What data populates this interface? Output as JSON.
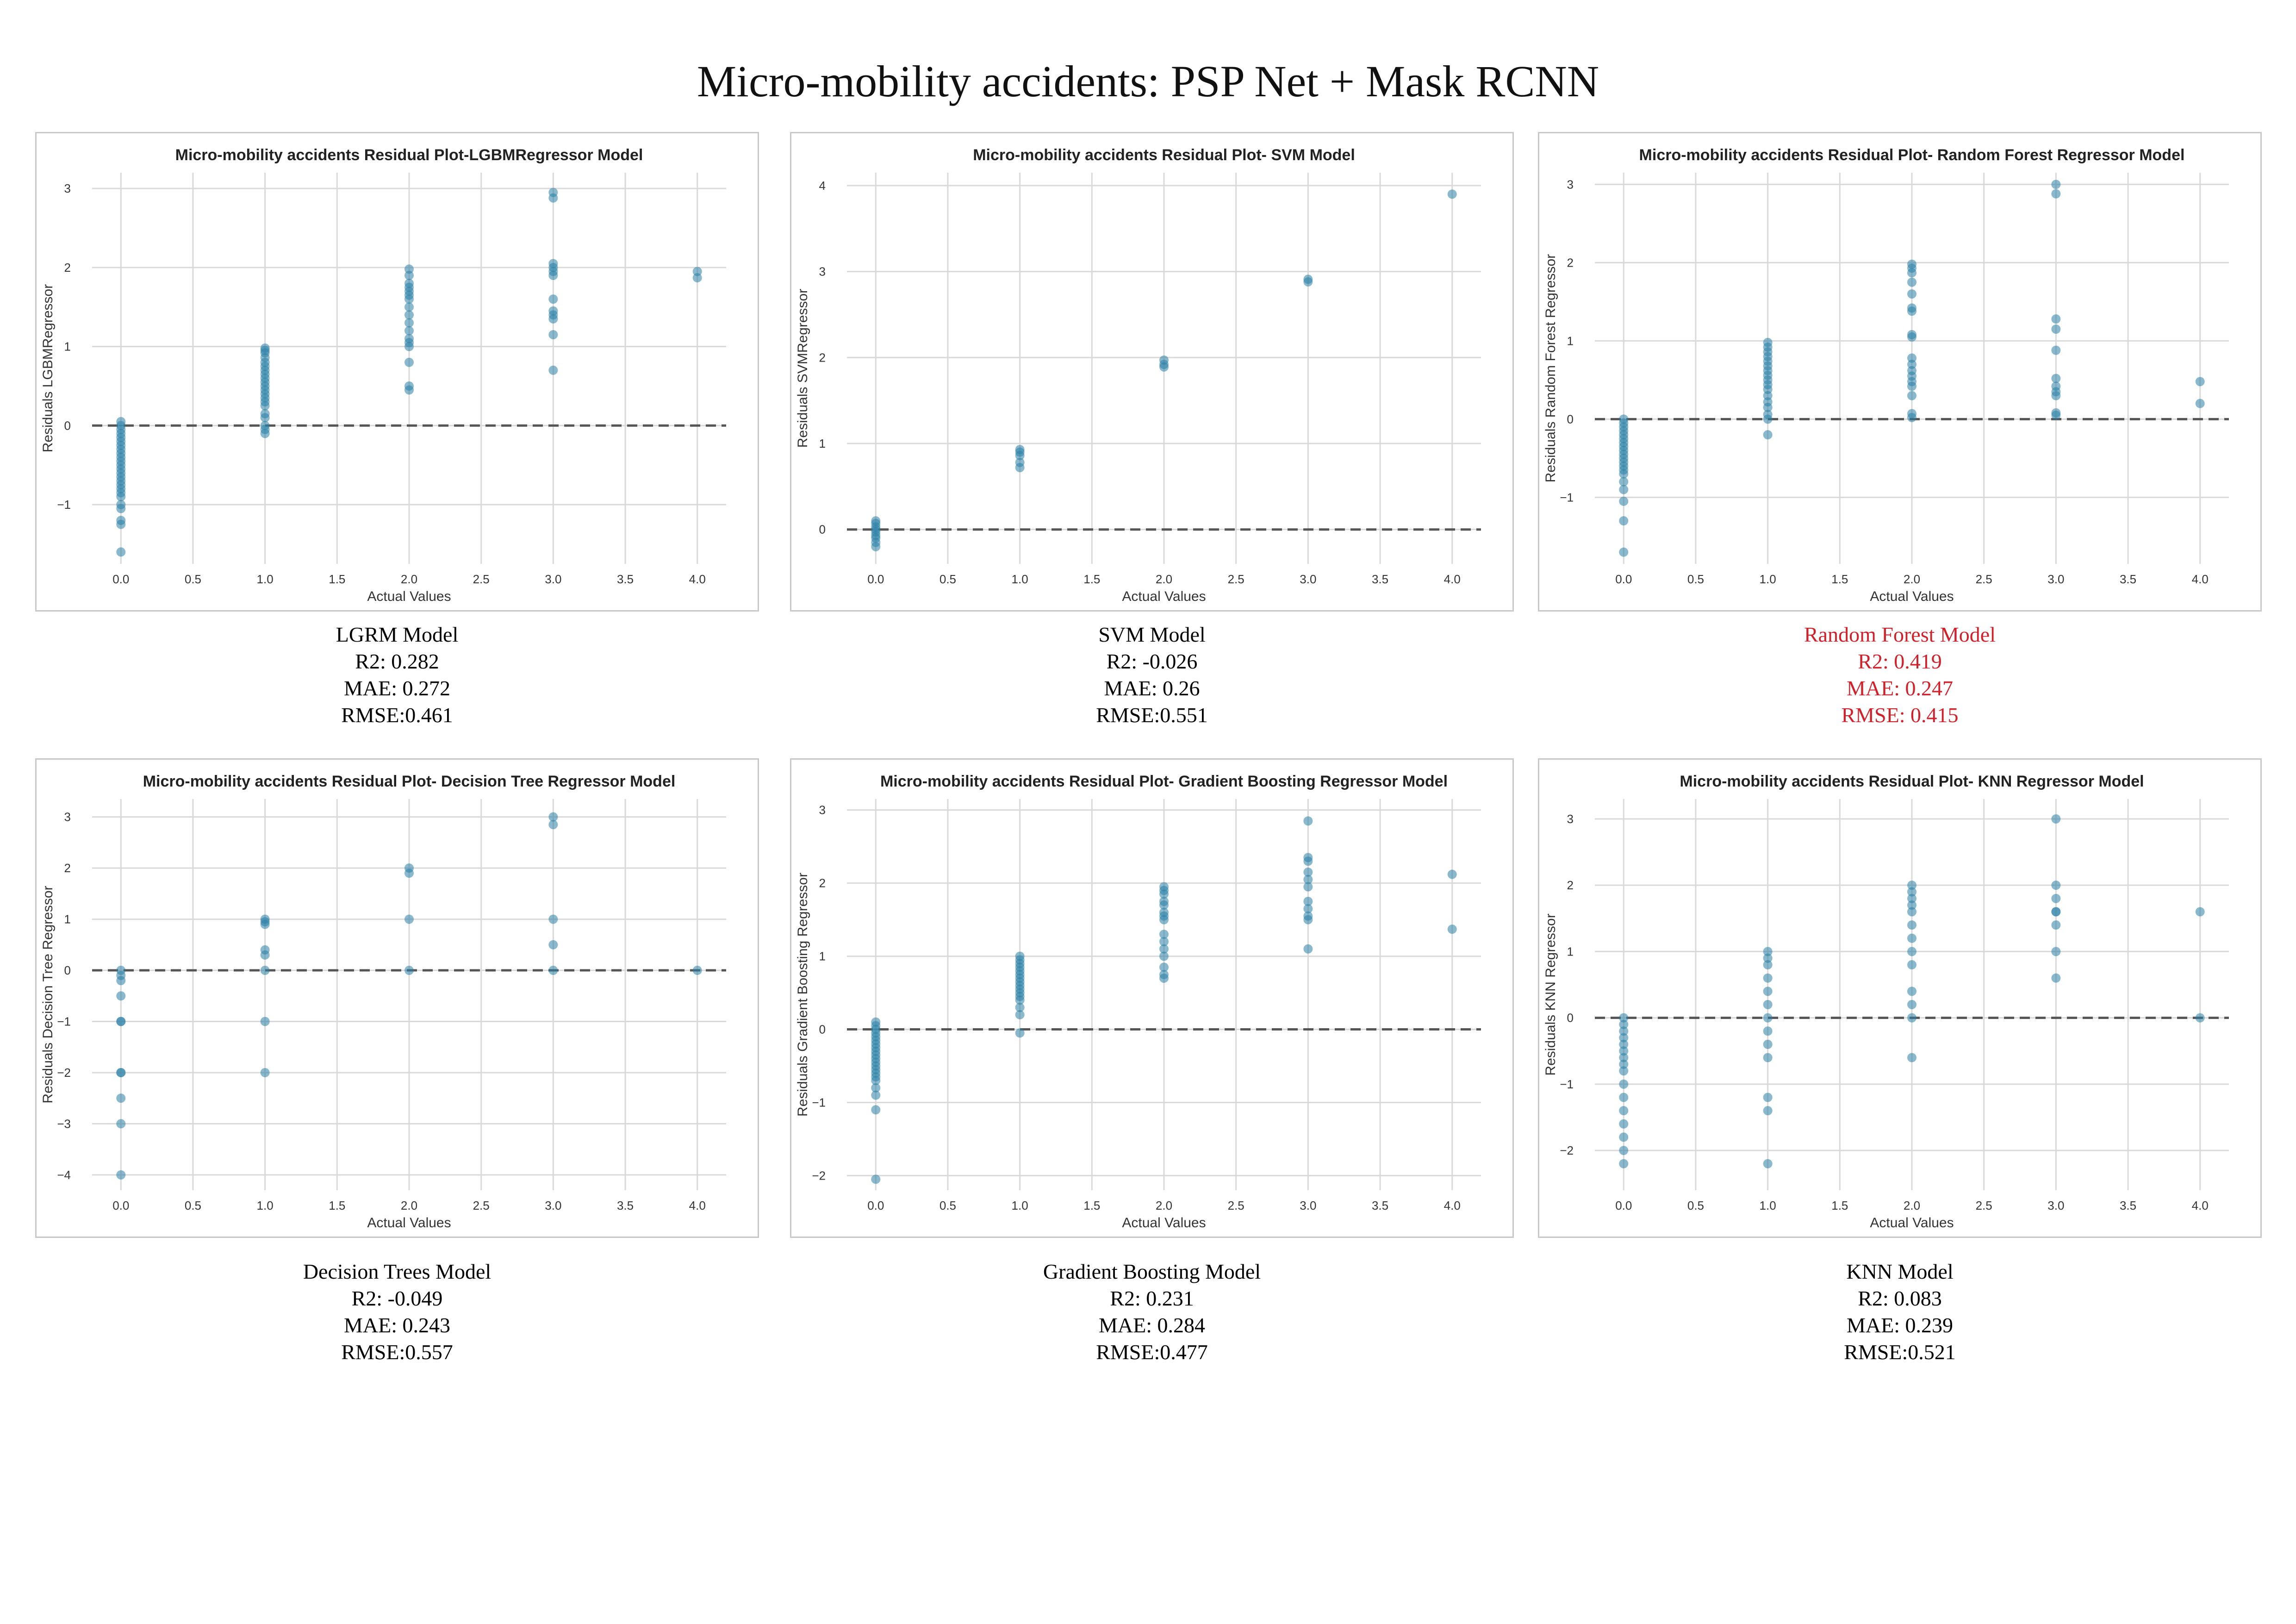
{
  "title": "Micro-mobility accidents: PSP Net + Mask RCNN",
  "colors": {
    "point": "#2a7fa6",
    "grid": "#d9d9d9",
    "highlight": "#d0202a",
    "zero_line": "#555555"
  },
  "chart_data": [
    {
      "type": "scatter",
      "title": "Micro-mobility accidents Residual Plot-LGBMRegressor Model",
      "xlabel": "Actual Values",
      "ylabel": "Residuals LGBMRegressor",
      "xlim": [
        -0.2,
        4.2
      ],
      "ylim": [
        -1.75,
        3.2
      ],
      "xticks": [
        0.0,
        0.5,
        1.0,
        1.5,
        2.0,
        2.5,
        3.0,
        3.5,
        4.0
      ],
      "yticks": [
        -1,
        0,
        1,
        2,
        3
      ],
      "zero_line": true,
      "grid": true,
      "x": [
        0,
        0,
        0,
        0,
        0,
        0,
        0,
        0,
        0,
        0,
        0,
        0,
        0,
        0,
        0,
        0,
        0,
        0,
        0,
        0,
        0,
        0,
        0,
        0,
        0,
        1,
        1,
        1,
        1,
        1,
        1,
        1,
        1,
        1,
        1,
        1,
        1,
        1,
        1,
        1,
        1,
        1,
        1,
        1,
        1,
        1,
        2,
        2,
        2,
        2,
        2,
        2,
        2,
        2,
        2,
        2,
        2,
        2,
        2,
        2,
        2,
        2,
        2,
        3,
        3,
        3,
        3,
        3,
        3,
        3,
        3,
        3,
        3,
        3,
        3,
        4,
        4
      ],
      "y": [
        0.05,
        0,
        -0.05,
        -0.1,
        -0.15,
        -0.2,
        -0.25,
        -0.3,
        -0.35,
        -0.4,
        -0.45,
        -0.5,
        -0.55,
        -0.6,
        -0.65,
        -0.7,
        -0.75,
        -0.8,
        -0.85,
        -0.9,
        -1.0,
        -1.05,
        -1.2,
        -1.25,
        -1.6,
        0.98,
        0.92,
        0.86,
        0.8,
        0.75,
        0.7,
        0.65,
        0.6,
        0.55,
        0.5,
        0.45,
        0.4,
        0.35,
        0.3,
        0.25,
        0.15,
        0.1,
        0,
        -0.05,
        -0.1,
        0.95,
        1.98,
        1.9,
        1.8,
        1.7,
        1.6,
        1.5,
        1.4,
        1.3,
        1.2,
        1.1,
        1.05,
        1.0,
        0.8,
        0.5,
        0.45,
        1.75,
        1.65,
        2.95,
        2.88,
        2.05,
        1.95,
        1.9,
        1.6,
        1.45,
        1.4,
        1.35,
        1.15,
        0.7,
        2.0,
        1.95,
        1.87
      ]
    },
    {
      "type": "scatter",
      "title": "Micro-mobility accidents Residual Plot- SVM Model",
      "xlabel": "Actual Values",
      "ylabel": "Residuals SVMRegressor",
      "xlim": [
        -0.2,
        4.2
      ],
      "ylim": [
        -0.4,
        4.15
      ],
      "xticks": [
        0.0,
        0.5,
        1.0,
        1.5,
        2.0,
        2.5,
        3.0,
        3.5,
        4.0
      ],
      "yticks": [
        0,
        1,
        2,
        3,
        4
      ],
      "zero_line": true,
      "grid": true,
      "x": [
        0,
        0,
        0,
        0,
        0,
        0,
        0,
        0,
        0,
        1,
        1,
        1,
        1,
        1,
        2,
        2,
        2,
        3,
        3,
        4
      ],
      "y": [
        0.1,
        0.07,
        0.03,
        0,
        -0.03,
        -0.07,
        -0.1,
        -0.15,
        -0.2,
        0.93,
        0.9,
        0.86,
        0.78,
        0.72,
        1.97,
        1.92,
        1.89,
        2.91,
        2.88,
        3.9
      ]
    },
    {
      "type": "scatter",
      "title": "Micro-mobility accidents Residual Plot- Random Forest Regressor Model",
      "xlabel": "Actual Values",
      "ylabel": "Residuals Random Forest Regressor",
      "xlim": [
        -0.2,
        4.2
      ],
      "ylim": [
        -1.85,
        3.15
      ],
      "xticks": [
        0.0,
        0.5,
        1.0,
        1.5,
        2.0,
        2.5,
        3.0,
        3.5,
        4.0
      ],
      "yticks": [
        -1,
        0,
        1,
        2,
        3
      ],
      "zero_line": true,
      "grid": true,
      "x": [
        0,
        0,
        0,
        0,
        0,
        0,
        0,
        0,
        0,
        0,
        0,
        0,
        0,
        0,
        0,
        0,
        0,
        0,
        0,
        0,
        1,
        1,
        1,
        1,
        1,
        1,
        1,
        1,
        1,
        1,
        1,
        1,
        1,
        1,
        1,
        1,
        1,
        2,
        2,
        2,
        2,
        2,
        2,
        2,
        2,
        2,
        2,
        2,
        2,
        2,
        2,
        2,
        2,
        2,
        2,
        3,
        3,
        3,
        3,
        3,
        3,
        3,
        3,
        3,
        3,
        3,
        4,
        4
      ],
      "y": [
        0,
        -0.05,
        -0.1,
        -0.15,
        -0.2,
        -0.25,
        -0.3,
        -0.35,
        -0.4,
        -0.45,
        -0.5,
        -0.55,
        -0.6,
        -0.65,
        -0.7,
        -0.8,
        -0.9,
        -1.05,
        -1.3,
        -1.7,
        0.98,
        0.92,
        0.86,
        0.8,
        0.74,
        0.68,
        0.62,
        0.56,
        0.5,
        0.44,
        0.38,
        0.3,
        0.22,
        0.15,
        0.06,
        0.0,
        -0.2,
        1.98,
        1.93,
        1.87,
        1.75,
        1.6,
        1.42,
        1.38,
        1.08,
        0.78,
        0.7,
        0.62,
        0.55,
        0.48,
        0.42,
        0.3,
        0.07,
        0.02,
        1.05,
        3.0,
        2.88,
        1.28,
        1.15,
        0.88,
        0.52,
        0.42,
        0.35,
        0.3,
        0.08,
        0.05,
        0.48,
        0.2
      ]
    },
    {
      "type": "scatter",
      "title": "Micro-mobility accidents Residual Plot- Decision Tree Regressor Model",
      "xlabel": "Actual Values",
      "ylabel": "Residuals Decision Tree Regressor",
      "xlim": [
        -0.2,
        4.2
      ],
      "ylim": [
        -4.3,
        3.35
      ],
      "xticks": [
        0.0,
        0.5,
        1.0,
        1.5,
        2.0,
        2.5,
        3.0,
        3.5,
        4.0
      ],
      "yticks": [
        -4,
        -3,
        -2,
        -1,
        0,
        1,
        2,
        3
      ],
      "zero_line": true,
      "grid": true,
      "x": [
        0,
        0,
        0,
        0,
        0,
        0,
        0,
        0,
        0,
        0,
        0,
        1,
        1,
        1,
        1,
        1,
        1,
        1,
        1,
        2,
        2,
        2,
        2,
        3,
        3,
        3,
        3,
        3,
        4
      ],
      "y": [
        0,
        -0.1,
        -0.2,
        -0.5,
        -1.0,
        -1.0,
        -2.0,
        -2.0,
        -2.5,
        -3.0,
        -4.0,
        1.0,
        0.9,
        0.4,
        0.3,
        0.0,
        -1.0,
        -2.0,
        0.95,
        2.0,
        1.9,
        1.0,
        0.0,
        3.0,
        2.85,
        1.0,
        0.5,
        0.0,
        0.0
      ]
    },
    {
      "type": "scatter",
      "title": "Micro-mobility accidents Residual Plot- Gradient Boosting Regressor Model",
      "xlabel": "Actual Values",
      "ylabel": "Residuals Gradient Boosting Regressor",
      "xlim": [
        -0.2,
        4.2
      ],
      "ylim": [
        -2.2,
        3.15
      ],
      "xticks": [
        0.0,
        0.5,
        1.0,
        1.5,
        2.0,
        2.5,
        3.0,
        3.5,
        4.0
      ],
      "yticks": [
        -2,
        -1,
        0,
        1,
        2,
        3
      ],
      "zero_line": true,
      "grid": true,
      "x": [
        0,
        0,
        0,
        0,
        0,
        0,
        0,
        0,
        0,
        0,
        0,
        0,
        0,
        0,
        0,
        0,
        0,
        0,
        0,
        0,
        0,
        1,
        1,
        1,
        1,
        1,
        1,
        1,
        1,
        1,
        1,
        1,
        1,
        1,
        1,
        1,
        1,
        2,
        2,
        2,
        2,
        2,
        2,
        2,
        2,
        2,
        2,
        2,
        2,
        2,
        2,
        2,
        3,
        3,
        3,
        3,
        3,
        3,
        3,
        3,
        3,
        3,
        3,
        4,
        4
      ],
      "y": [
        0.1,
        0.05,
        0,
        -0.05,
        -0.1,
        -0.15,
        -0.2,
        -0.25,
        -0.3,
        -0.35,
        -0.4,
        -0.45,
        -0.5,
        -0.55,
        -0.6,
        -0.65,
        -0.7,
        -0.8,
        -0.9,
        -1.1,
        -2.05,
        1.0,
        0.95,
        0.9,
        0.85,
        0.8,
        0.75,
        0.7,
        0.65,
        0.6,
        0.55,
        0.5,
        0.45,
        0.4,
        0.3,
        0.2,
        -0.05,
        1.95,
        1.9,
        1.85,
        1.75,
        1.7,
        1.6,
        1.55,
        1.5,
        1.3,
        1.2,
        1.1,
        1.0,
        0.85,
        0.75,
        0.7,
        2.85,
        2.35,
        2.3,
        2.15,
        2.05,
        1.95,
        1.75,
        1.65,
        1.55,
        1.5,
        1.1,
        2.12,
        1.37
      ]
    },
    {
      "type": "scatter",
      "title": "Micro-mobility accidents Residual Plot- KNN Regressor Model",
      "xlabel": "Actual Values",
      "ylabel": "Residuals KNN Regressor",
      "xlim": [
        -0.2,
        4.2
      ],
      "ylim": [
        -2.6,
        3.3
      ],
      "xticks": [
        0.0,
        0.5,
        1.0,
        1.5,
        2.0,
        2.5,
        3.0,
        3.5,
        4.0
      ],
      "yticks": [
        -2,
        -1,
        0,
        1,
        2,
        3
      ],
      "zero_line": true,
      "grid": true,
      "x": [
        0,
        0,
        0,
        0,
        0,
        0,
        0,
        0,
        0,
        0,
        0,
        0,
        0,
        0,
        0,
        0,
        1,
        1,
        1,
        1,
        1,
        1,
        1,
        1,
        1,
        1,
        1,
        1,
        1,
        2,
        2,
        2,
        2,
        2,
        2,
        2,
        2,
        2,
        2,
        2,
        2,
        2,
        3,
        3,
        3,
        3,
        3,
        3,
        3,
        3,
        4,
        4
      ],
      "y": [
        0,
        -0.2,
        -0.4,
        -0.6,
        -0.8,
        -1.0,
        -1.2,
        -1.4,
        -1.6,
        -1.8,
        -2.0,
        -2.2,
        -0.1,
        -0.3,
        -0.5,
        -0.7,
        1.0,
        0.8,
        0.6,
        0.4,
        0.2,
        0.0,
        -0.2,
        -0.4,
        -0.6,
        -1.2,
        -1.4,
        -2.2,
        0.9,
        2.0,
        1.8,
        1.6,
        1.4,
        1.2,
        1.0,
        0.8,
        0.4,
        0.2,
        0.0,
        -0.6,
        1.9,
        1.7,
        3.0,
        2.0,
        1.8,
        1.6,
        1.4,
        1.0,
        0.6,
        1.6,
        1.6,
        0.0
      ]
    }
  ],
  "metrics": [
    {
      "model": "LGRM Model",
      "r2": "R2: 0.282",
      "mae": "MAE: 0.272",
      "rmse": "RMSE:0.461"
    },
    {
      "model": "SVM Model",
      "r2": "R2: -0.026",
      "mae": "MAE: 0.26",
      "rmse": "RMSE:0.551"
    },
    {
      "model": "Random Forest Model",
      "r2": "R2: 0.419",
      "mae": "MAE: 0.247",
      "rmse": "RMSE: 0.415"
    },
    {
      "model": "Decision Trees Model",
      "r2": "R2: -0.049",
      "mae": "MAE: 0.243",
      "rmse": "RMSE:0.557"
    },
    {
      "model": "Gradient Boosting Model",
      "r2": "R2: 0.231",
      "mae": "MAE: 0.284",
      "rmse": "RMSE:0.477"
    },
    {
      "model": "KNN Model",
      "r2": "R2: 0.083",
      "mae": "MAE: 0.239",
      "rmse": "RMSE:0.521"
    }
  ]
}
